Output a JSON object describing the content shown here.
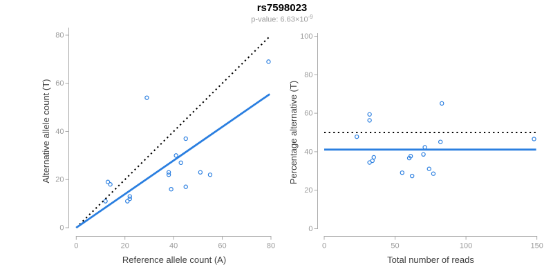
{
  "figure": {
    "title": "rs7598023",
    "pvalue_prefix": "p-value: 6.63×10",
    "pvalue_exponent": "-9"
  },
  "colors": {
    "accent": "#2b7fe0",
    "dotted_line": "#000000",
    "axis": "#a8a8a8",
    "tick_label": "#9b9b9b",
    "axis_title": "#3d3d3d",
    "subtitle": "#9b9b9b",
    "background": "#ffffff"
  },
  "chart_data": [
    {
      "name": "allele-counts",
      "type": "scatter",
      "xlabel": "Reference allele count (A)",
      "ylabel": "Alternative allele count (T)",
      "xlim": [
        0,
        80
      ],
      "ylim": [
        0,
        80
      ],
      "xticks": [
        0,
        20,
        40,
        60,
        80
      ],
      "yticks": [
        0,
        20,
        40,
        60,
        80
      ],
      "grid": false,
      "legend": false,
      "points": [
        [
          13,
          19
        ],
        [
          14,
          18
        ],
        [
          12,
          11
        ],
        [
          21,
          11
        ],
        [
          22,
          13
        ],
        [
          22,
          12
        ],
        [
          29,
          54
        ],
        [
          38,
          23
        ],
        [
          38,
          22
        ],
        [
          39,
          16
        ],
        [
          41,
          30
        ],
        [
          43,
          27
        ],
        [
          45,
          37
        ],
        [
          45,
          17
        ],
        [
          51,
          23
        ],
        [
          55,
          22
        ],
        [
          79,
          69
        ]
      ],
      "lines": [
        {
          "name": "identity-line",
          "style": "dotted",
          "color": "#000000",
          "x1": 0,
          "y1": 0,
          "x2": 79.5,
          "y2": 79.5
        },
        {
          "name": "regression-line",
          "style": "solid",
          "color": "#2b7fe0",
          "x1": 0,
          "y1": 0,
          "x2": 79.5,
          "y2": 55.5
        }
      ]
    },
    {
      "name": "percentage-alternative",
      "type": "scatter",
      "xlabel": "Total number of reads",
      "ylabel": "Percentage alternative (T)",
      "xlim": [
        0,
        150
      ],
      "ylim": [
        0,
        100
      ],
      "xticks": [
        0,
        50,
        100,
        150
      ],
      "yticks": [
        0,
        20,
        40,
        60,
        80,
        100
      ],
      "grid": false,
      "legend": false,
      "points": [
        [
          32,
          59.4
        ],
        [
          32,
          56.3
        ],
        [
          23,
          47.8
        ],
        [
          32,
          34.4
        ],
        [
          35,
          37.1
        ],
        [
          34,
          35.3
        ],
        [
          83,
          65.1
        ],
        [
          61,
          37.7
        ],
        [
          60,
          36.7
        ],
        [
          55,
          29.1
        ],
        [
          71,
          42.3
        ],
        [
          70,
          38.6
        ],
        [
          82,
          45.1
        ],
        [
          62,
          27.4
        ],
        [
          74,
          31.1
        ],
        [
          77,
          28.6
        ],
        [
          148,
          46.6
        ]
      ],
      "lines": [
        {
          "name": "fifty-percent-line",
          "style": "dotted",
          "color": "#000000",
          "x1": 0,
          "y1": 50,
          "x2": 149.5,
          "y2": 50
        },
        {
          "name": "mean-percentage-line",
          "style": "solid",
          "color": "#2b7fe0",
          "x1": 0,
          "y1": 41.1,
          "x2": 149.5,
          "y2": 41.1
        }
      ]
    }
  ]
}
